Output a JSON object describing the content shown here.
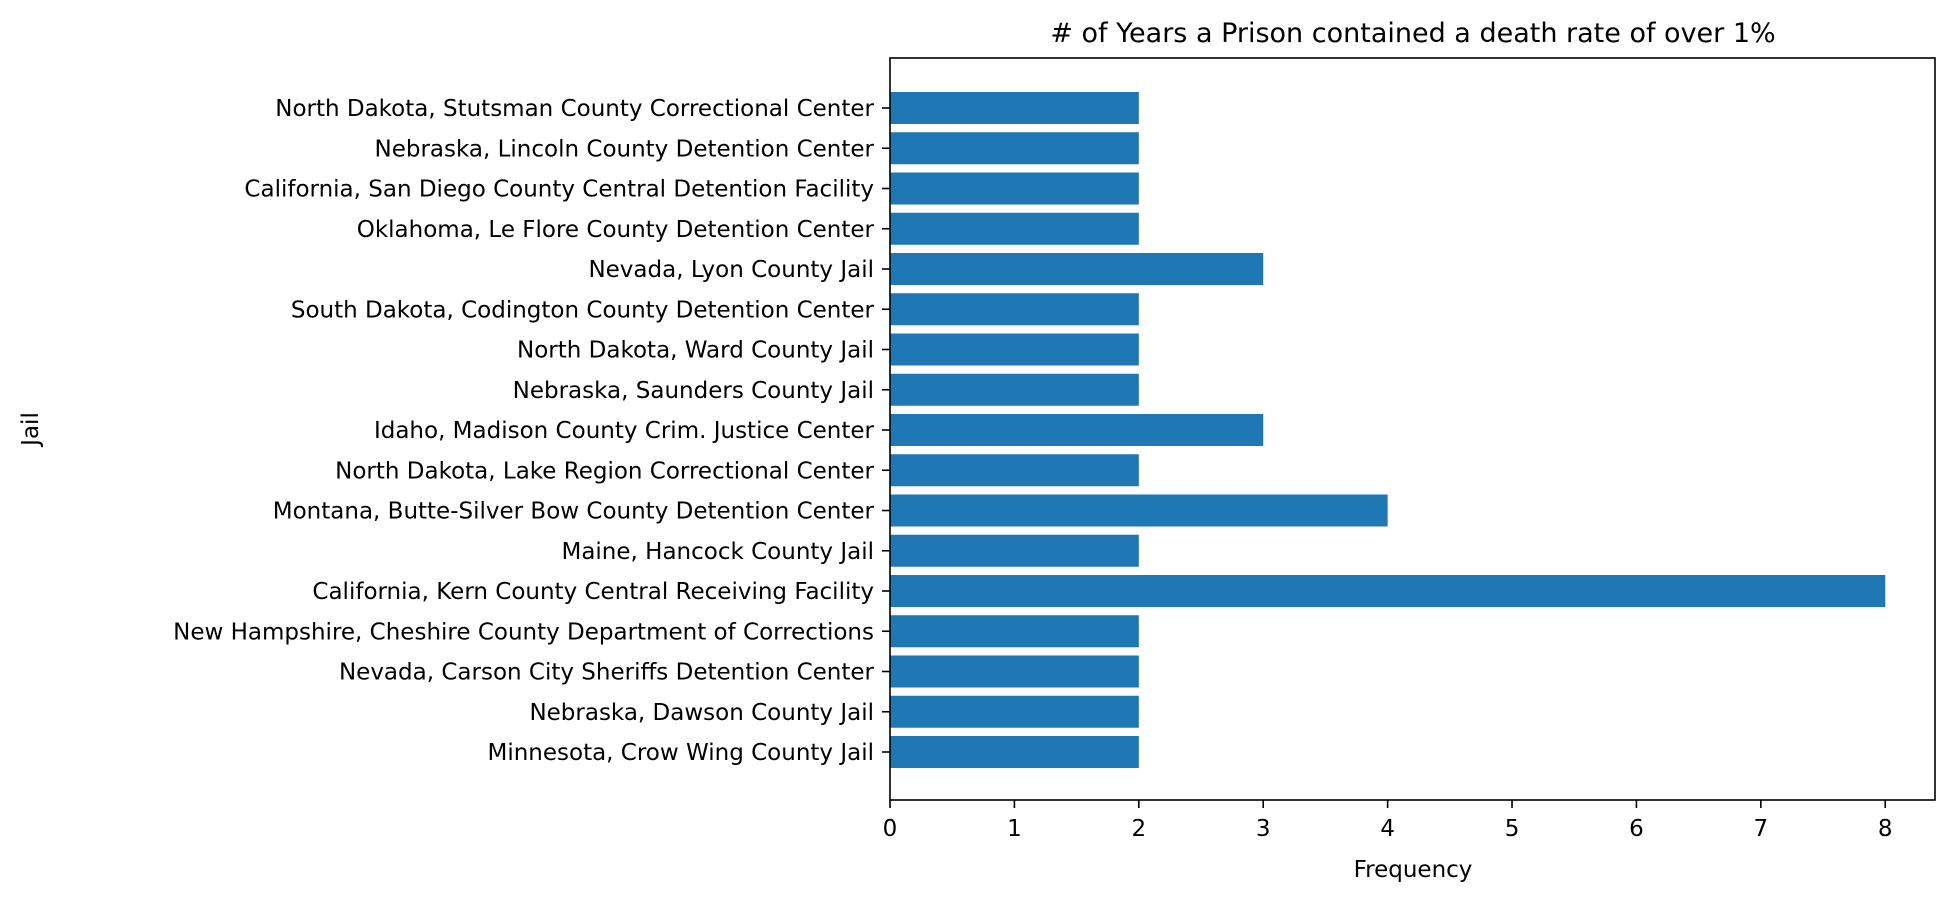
{
  "chart_data": {
    "type": "bar",
    "orientation": "horizontal",
    "title": "# of Years a Prison contained a death rate of over 1%",
    "xlabel": "Frequency",
    "ylabel": "Jail",
    "xlim": [
      0,
      8.4
    ],
    "xticks": [
      0,
      1,
      2,
      3,
      4,
      5,
      6,
      7,
      8
    ],
    "grid": false,
    "bar_color": "#1f77b4",
    "categories": [
      "North Dakota, Stutsman County Correctional Center",
      "Nebraska, Lincoln County Detention Center",
      "California, San Diego County Central Detention Facility",
      "Oklahoma, Le Flore County Detention Center",
      "Nevada, Lyon County Jail",
      "South Dakota, Codington County Detention Center",
      "North Dakota, Ward County Jail",
      "Nebraska, Saunders County Jail",
      "Idaho, Madison County Crim. Justice Center",
      "North Dakota, Lake Region Correctional Center",
      "Montana, Butte-Silver Bow County Detention Center",
      "Maine, Hancock County Jail",
      "California, Kern County Central Receiving Facility",
      "New Hampshire, Cheshire County Department of Corrections",
      "Nevada, Carson City Sheriffs Detention Center",
      "Nebraska, Dawson County Jail",
      "Minnesota, Crow Wing County Jail"
    ],
    "values": [
      2,
      2,
      2,
      2,
      3,
      2,
      2,
      2,
      3,
      2,
      4,
      2,
      8,
      2,
      2,
      2,
      2
    ]
  }
}
